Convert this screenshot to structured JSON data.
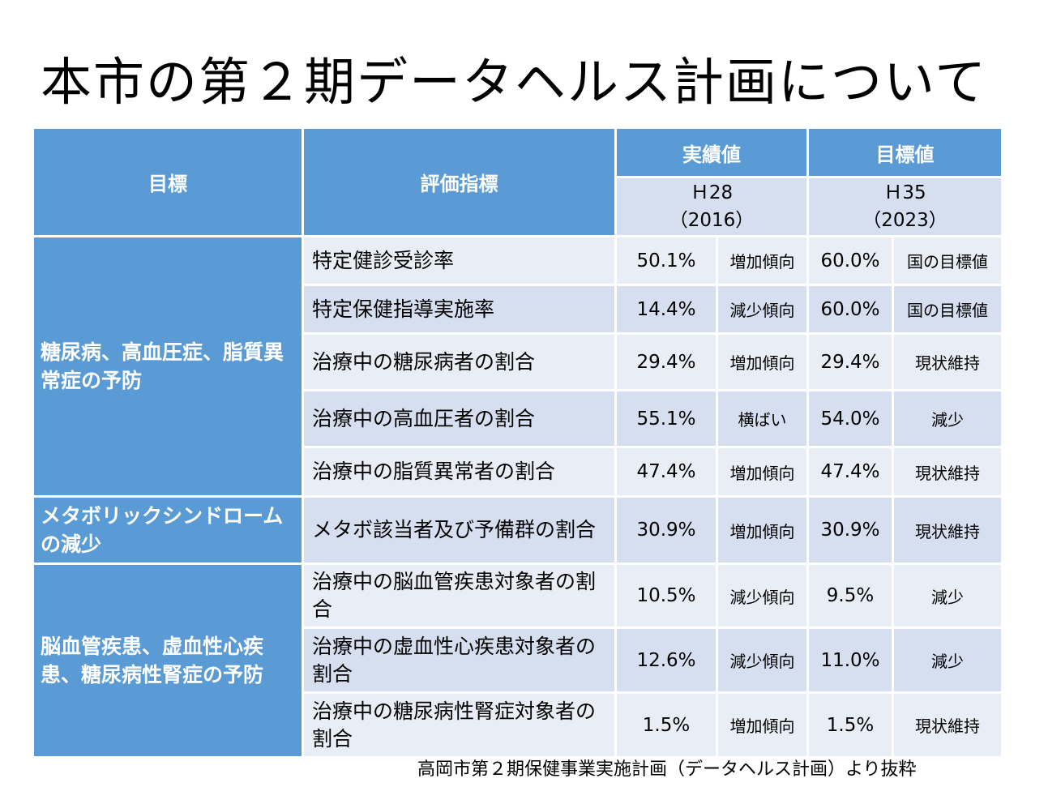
{
  "title": "本市の第２期データヘルス計画について",
  "header": {
    "goal": "目標",
    "indicator": "評価指標",
    "actual": "実績値",
    "target": "目標値",
    "actual_year": "Ｈ28",
    "actual_year_ad": "（2016）",
    "target_year": "Ｈ35",
    "target_year_ad": "（2023）"
  },
  "goals": [
    "糖尿病、高血圧症、脂質異常症の予防",
    "メタボリックシンドロームの減少",
    "脳血管疾患、虚血性心疾患、糖尿病性腎症の予防"
  ],
  "rows": [
    {
      "indicator": "特定健診受診率",
      "actual": "50.1%",
      "trend": "増加傾向",
      "target": "60.0%",
      "target_note": "国の目標値"
    },
    {
      "indicator": "特定保健指導実施率",
      "actual": "14.4%",
      "trend": "減少傾向",
      "target": "60.0%",
      "target_note": "国の目標値"
    },
    {
      "indicator": "治療中の糖尿病者の割合",
      "actual": "29.4%",
      "trend": "増加傾向",
      "target": "29.4%",
      "target_note": "現状維持"
    },
    {
      "indicator": "治療中の高血圧者の割合",
      "actual": "55.1%",
      "trend": "横ばい",
      "target": "54.0%",
      "target_note": "減少"
    },
    {
      "indicator": "治療中の脂質異常者の割合",
      "actual": "47.4%",
      "trend": "増加傾向",
      "target": "47.4%",
      "target_note": "現状維持"
    },
    {
      "indicator": "メタボ該当者及び予備群の割合",
      "actual": "30.9%",
      "trend": "増加傾向",
      "target": "30.9%",
      "target_note": "現状維持"
    },
    {
      "indicator": "治療中の脳血管疾患対象者の割合",
      "actual": "10.5%",
      "trend": "減少傾向",
      "target": "9.5%",
      "target_note": "減少"
    },
    {
      "indicator": "治療中の虚血性心疾患対象者の割合",
      "actual": "12.6%",
      "trend": "減少傾向",
      "target": "11.0%",
      "target_note": "減少"
    },
    {
      "indicator": "治療中の糖尿病性腎症対象者の割合",
      "actual": "1.5%",
      "trend": "増加傾向",
      "target": "1.5%",
      "target_note": "現状維持"
    }
  ],
  "source": "高岡市第２期保健事業実施計画（データヘルス計画）より抜粋"
}
